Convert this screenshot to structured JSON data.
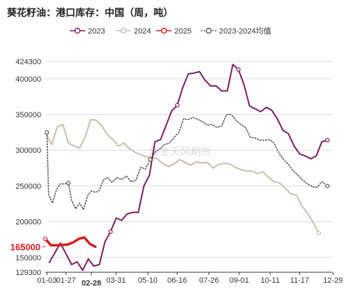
{
  "title": "葵花籽油：港口库存：中国（周，吨）",
  "watermark": "紫金天风期货",
  "colors": {
    "s2023": "#7b1a5e",
    "s2024": "#cbbba8",
    "s2025": "#d7191c",
    "avg": "#555555",
    "grid": "#d9d9d9",
    "axis": "#333333",
    "highlight": "#d7191c"
  },
  "chart_data": {
    "type": "line",
    "title": "葵花籽油：港口库存：中国（周，吨）",
    "xlabel": "",
    "ylabel": "",
    "ylim": [
      129300,
      424300
    ],
    "xlim_days": [
      0,
      361
    ],
    "yticks": [
      {
        "value": 424300,
        "label": "424300"
      },
      {
        "value": 400000,
        "label": "400000"
      },
      {
        "value": 350000,
        "label": "350000"
      },
      {
        "value": 300000,
        "label": "300000"
      },
      {
        "value": 250000,
        "label": "250000"
      },
      {
        "value": 200000,
        "label": "200000"
      },
      {
        "value": 150000,
        "label": "150000"
      },
      {
        "value": 129300,
        "label": "129300"
      }
    ],
    "xticks": [
      {
        "day": 2,
        "label": "01-03"
      },
      {
        "day": 26,
        "label": "01-27"
      },
      {
        "day": 58,
        "label": "02-28",
        "highlight": true
      },
      {
        "day": 89,
        "label": "03-31"
      },
      {
        "day": 129,
        "label": "05-10"
      },
      {
        "day": 166,
        "label": "06-16"
      },
      {
        "day": 206,
        "label": "07-26"
      },
      {
        "day": 244,
        "label": "09-01"
      },
      {
        "day": 283,
        "label": "10-11"
      },
      {
        "day": 320,
        "label": "11-17"
      },
      {
        "day": 362,
        "label": "12-29"
      }
    ],
    "y_highlight": {
      "value": 165000,
      "label": "165000"
    },
    "legend_position": "top",
    "grid": "horizontal",
    "series": [
      {
        "name": "2023",
        "color": "#7b1a5e",
        "marker": "circle",
        "values": [
          [
            5,
            143000
          ],
          [
            19,
            170000
          ],
          [
            33,
            140000
          ],
          [
            40,
            144000
          ],
          [
            47,
            132000
          ],
          [
            54,
            148000
          ],
          [
            61,
            138000
          ],
          [
            68,
            140000
          ],
          [
            75,
            172000
          ],
          [
            82,
            186000
          ],
          [
            89,
            205000
          ],
          [
            96,
            202000
          ],
          [
            103,
            211000
          ],
          [
            110,
            213000
          ],
          [
            117,
            213000
          ],
          [
            124,
            250000
          ],
          [
            131,
            265000
          ],
          [
            138,
            312000
          ],
          [
            145,
            315000
          ],
          [
            152,
            335000
          ],
          [
            159,
            355000
          ],
          [
            166,
            363000
          ],
          [
            173,
            388000
          ],
          [
            180,
            407000
          ],
          [
            187,
            408000
          ],
          [
            194,
            410000
          ],
          [
            201,
            398000
          ],
          [
            208,
            390000
          ],
          [
            215,
            390000
          ],
          [
            222,
            383000
          ],
          [
            229,
            383000
          ],
          [
            236,
            420000
          ],
          [
            243,
            413000
          ],
          [
            250,
            392000
          ],
          [
            257,
            362000
          ],
          [
            264,
            358000
          ],
          [
            271,
            354000
          ],
          [
            278,
            360000
          ],
          [
            285,
            356000
          ],
          [
            292,
            344000
          ],
          [
            299,
            328000
          ],
          [
            306,
            323000
          ],
          [
            313,
            306000
          ],
          [
            320,
            295000
          ],
          [
            327,
            292000
          ],
          [
            334,
            288000
          ],
          [
            341,
            292000
          ],
          [
            348,
            312000
          ],
          [
            355,
            314000
          ]
        ]
      },
      {
        "name": "2024",
        "color": "#cbbba8",
        "marker": "circle",
        "values": [
          [
            1,
            322000
          ],
          [
            8,
            308000
          ],
          [
            15,
            333000
          ],
          [
            22,
            336000
          ],
          [
            29,
            310000
          ],
          [
            36,
            306000
          ],
          [
            43,
            303000
          ],
          [
            50,
            318000
          ],
          [
            57,
            343000
          ],
          [
            64,
            342000
          ],
          [
            71,
            334000
          ],
          [
            78,
            322000
          ],
          [
            85,
            315000
          ],
          [
            92,
            306000
          ],
          [
            99,
            310000
          ],
          [
            106,
            302000
          ],
          [
            113,
            297000
          ],
          [
            120,
            294000
          ],
          [
            127,
            291000
          ],
          [
            134,
            290000
          ],
          [
            141,
            288000
          ],
          [
            148,
            281000
          ],
          [
            155,
            277000
          ],
          [
            162,
            281000
          ],
          [
            169,
            287000
          ],
          [
            176,
            283000
          ],
          [
            183,
            279000
          ],
          [
            190,
            284000
          ],
          [
            197,
            282000
          ],
          [
            204,
            283000
          ],
          [
            211,
            275000
          ],
          [
            218,
            280000
          ],
          [
            225,
            282000
          ],
          [
            232,
            281000
          ],
          [
            239,
            276000
          ],
          [
            246,
            273000
          ],
          [
            253,
            271000
          ],
          [
            260,
            271000
          ],
          [
            267,
            267000
          ],
          [
            274,
            270000
          ],
          [
            281,
            262000
          ],
          [
            288,
            256000
          ],
          [
            295,
            254000
          ],
          [
            302,
            247000
          ],
          [
            309,
            239000
          ],
          [
            316,
            237000
          ],
          [
            323,
            222000
          ],
          [
            330,
            212000
          ],
          [
            337,
            199000
          ],
          [
            344,
            184000
          ]
        ]
      },
      {
        "name": "2025",
        "color": "#d7191c",
        "marker": "circle",
        "values": [
          [
            0,
            176000
          ],
          [
            7,
            167000
          ],
          [
            14,
            167000
          ],
          [
            21,
            167500
          ],
          [
            28,
            168000
          ],
          [
            35,
            171000
          ],
          [
            42,
            176000
          ],
          [
            49,
            178000
          ],
          [
            56,
            169000
          ],
          [
            63,
            165000
          ]
        ]
      },
      {
        "name": "2023-2024均值",
        "color": "#555555",
        "marker": "circle",
        "dashed": true,
        "values": [
          [
            2,
            325000
          ],
          [
            4,
            238000
          ],
          [
            9,
            226000
          ],
          [
            14,
            245000
          ],
          [
            19,
            253000
          ],
          [
            24,
            253000
          ],
          [
            29,
            254000
          ],
          [
            33,
            230000
          ],
          [
            38,
            218000
          ],
          [
            43,
            226000
          ],
          [
            48,
            217000
          ],
          [
            53,
            236000
          ],
          [
            58,
            243000
          ],
          [
            63,
            241000
          ],
          [
            68,
            244000
          ],
          [
            73,
            258000
          ],
          [
            78,
            262000
          ],
          [
            84,
            255000
          ],
          [
            90,
            262000
          ],
          [
            96,
            259000
          ],
          [
            102,
            264000
          ],
          [
            108,
            256000
          ],
          [
            114,
            258000
          ],
          [
            120,
            276000
          ],
          [
            126,
            274000
          ],
          [
            132,
            287000
          ],
          [
            138,
            297000
          ],
          [
            144,
            302000
          ],
          [
            150,
            308000
          ],
          [
            156,
            310000
          ],
          [
            162,
            318000
          ],
          [
            168,
            325000
          ],
          [
            174,
            344000
          ],
          [
            180,
            343000
          ],
          [
            186,
            346000
          ],
          [
            192,
            343000
          ],
          [
            198,
            340000
          ],
          [
            204,
            335000
          ],
          [
            210,
            336000
          ],
          [
            216,
            332000
          ],
          [
            222,
            334000
          ],
          [
            228,
            350000
          ],
          [
            234,
            350000
          ],
          [
            240,
            342000
          ],
          [
            246,
            336000
          ],
          [
            252,
            332000
          ],
          [
            258,
            318000
          ],
          [
            264,
            317000
          ],
          [
            270,
            314000
          ],
          [
            276,
            314000
          ],
          [
            282,
            315000
          ],
          [
            288,
            310000
          ],
          [
            294,
            296000
          ],
          [
            300,
            287000
          ],
          [
            306,
            280000
          ],
          [
            312,
            271000
          ],
          [
            318,
            265000
          ],
          [
            324,
            258000
          ],
          [
            330,
            253000
          ],
          [
            336,
            249000
          ],
          [
            342,
            248000
          ],
          [
            348,
            256000
          ],
          [
            355,
            250000
          ]
        ]
      }
    ]
  }
}
